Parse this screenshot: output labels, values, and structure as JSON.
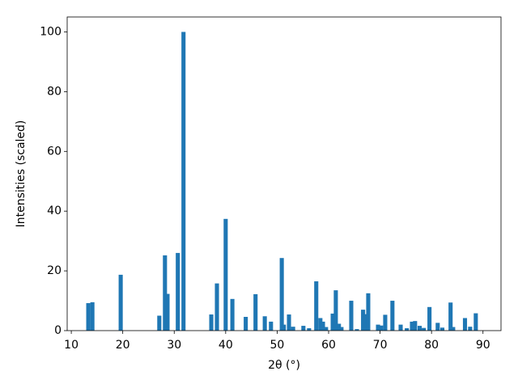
{
  "chart_data": {
    "type": "bar",
    "xlabel": "2θ (°)",
    "ylabel": "Intensities (scaled)",
    "x": [
      13.3,
      14.1,
      19.6,
      27.1,
      28.2,
      28.7,
      30.7,
      31.8,
      37.2,
      38.3,
      40.0,
      41.3,
      43.9,
      45.8,
      47.6,
      48.8,
      50.9,
      51.3,
      52.3,
      53.1,
      55.1,
      56.2,
      57.6,
      58.4,
      58.9,
      59.5,
      60.8,
      61.4,
      62.0,
      62.5,
      64.4,
      65.5,
      66.7,
      67.2,
      67.7,
      69.6,
      70.2,
      71.0,
      72.4,
      74.0,
      75.2,
      76.2,
      76.8,
      77.7,
      78.5,
      79.6,
      81.2,
      82.1,
      83.7,
      84.2,
      86.5,
      87.5,
      88.6
    ],
    "values": [
      9.2,
      9.5,
      18.7,
      5,
      25.2,
      12.3,
      26,
      100,
      5.4,
      15.8,
      37.4,
      10.6,
      4.6,
      12.2,
      4.8,
      3,
      24.3,
      2,
      5.4,
      1.3,
      1.6,
      0.8,
      16.5,
      4.2,
      3,
      1.2,
      5.7,
      13.5,
      2.3,
      1.2,
      10,
      0.5,
      7,
      5.5,
      12.5,
      2,
      1.7,
      5.3,
      10,
      2,
      0.8,
      3,
      3.2,
      1.6,
      0.9,
      7.9,
      2.6,
      1,
      9.4,
      1.2,
      4.2,
      1.3,
      5.8
    ],
    "color": "#1f77b4",
    "xlim": [
      9.2,
      93.5
    ],
    "xticks": [
      10,
      20,
      30,
      40,
      50,
      60,
      70,
      80,
      90
    ],
    "ylim": [
      0,
      105
    ],
    "yticks": [
      0,
      20,
      40,
      60,
      80,
      100
    ],
    "grid": false
  }
}
